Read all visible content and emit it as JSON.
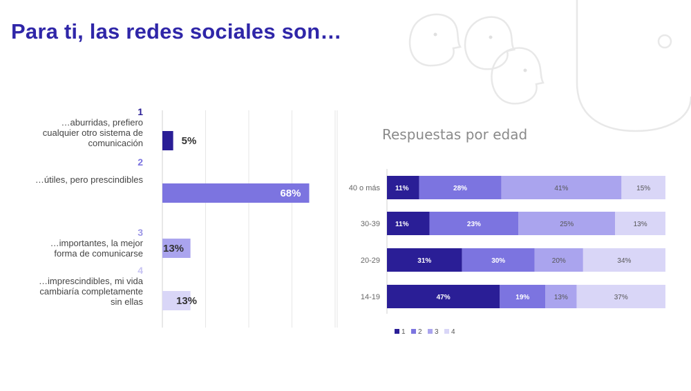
{
  "page": {
    "title": "Para ti, las redes sociales son…",
    "colors": {
      "c1": "#2a1e96",
      "c2": "#7c74e0",
      "c3": "#aaa4ee",
      "c4": "#d9d6f7",
      "title": "#2f26a8",
      "deco": "#e6e6e6"
    }
  },
  "chart_data": [
    {
      "type": "bar",
      "orientation": "horizontal",
      "title": "",
      "xlabel": "",
      "ylabel": "",
      "grid": true,
      "categories": [
        {
          "num": "1",
          "label": "…aburridas, prefiero cualquier otro sistema de comunicación"
        },
        {
          "num": "2",
          "label": "…útiles, pero prescindibles"
        },
        {
          "num": "3",
          "label": "…importantes, la mejor forma de comunicarse"
        },
        {
          "num": "4",
          "label": "…imprescindibles, mi vida cambiaría completamente sin ellas"
        }
      ],
      "values": [
        5,
        68,
        13,
        13
      ],
      "value_labels": [
        "5%",
        "68%",
        "13%",
        "13%"
      ],
      "xlim": [
        0,
        80
      ]
    },
    {
      "type": "bar",
      "orientation": "horizontal",
      "stacked": true,
      "normalized": true,
      "title": "Respuestas por edad",
      "categories": [
        "40 o más",
        "30-39",
        "20-29",
        "14-19"
      ],
      "series": [
        {
          "name": "1",
          "values": [
            11,
            11,
            31,
            47
          ],
          "labels": [
            "11%",
            "11%",
            "31%",
            "47%"
          ]
        },
        {
          "name": "2",
          "values": [
            28,
            23,
            30,
            19
          ],
          "labels": [
            "28%",
            "23%",
            "30%",
            "19%"
          ]
        },
        {
          "name": "3",
          "values": [
            41,
            25,
            20,
            13
          ],
          "labels": [
            "41%",
            "25%",
            "20%",
            "13%"
          ]
        },
        {
          "name": "4",
          "values": [
            15,
            13,
            34,
            37
          ],
          "labels": [
            "15%",
            "13%",
            "34%",
            "37%"
          ]
        }
      ],
      "legend": "bottom-left"
    }
  ]
}
